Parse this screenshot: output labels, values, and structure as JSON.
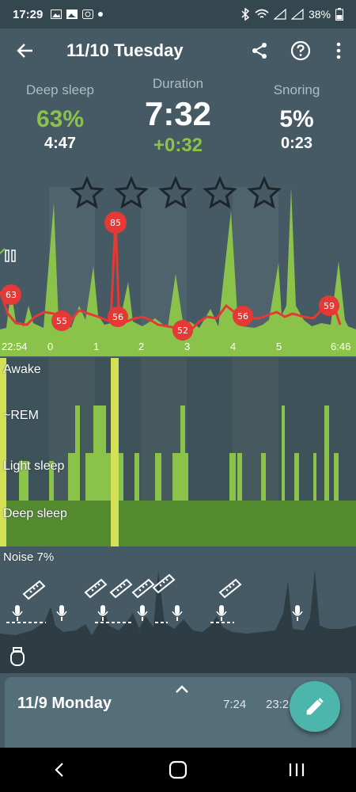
{
  "status": {
    "time": "17:29",
    "battery": "38%"
  },
  "header": {
    "title": "11/10 Tuesday"
  },
  "stats": {
    "deep": {
      "label": "Deep sleep",
      "percent": "63%",
      "time": "4:47"
    },
    "duration": {
      "label": "Duration",
      "time": "7:32",
      "diff": "+0:32"
    },
    "snoring": {
      "label": "Snoring",
      "percent": "5%",
      "time": "0:23"
    }
  },
  "rating": {
    "stars": 5,
    "filled": 0
  },
  "hr_markers": [
    "63",
    "85",
    "55",
    "56",
    "52",
    "56",
    "59"
  ],
  "hours": [
    "22:54",
    "0",
    "1",
    "2",
    "3",
    "4",
    "5",
    "6:46"
  ],
  "stages": {
    "awake": "Awake",
    "rem": "~REM",
    "light": "Light sleep",
    "deep": "Deep sleep"
  },
  "noise": {
    "label": "Noise 7%"
  },
  "card": {
    "day": "11/9 Monday",
    "duration": "7:24",
    "start": "23:24"
  },
  "colors": {
    "accent": "#8bc34a",
    "heart": "#e53935",
    "fab": "#4db6ac"
  }
}
